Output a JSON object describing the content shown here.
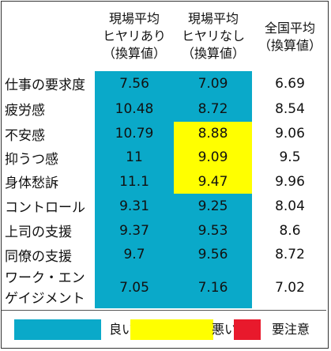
{
  "headers": {
    "col1": [
      "現場平均",
      "ヒヤリあり",
      "（換算値）"
    ],
    "col2": [
      "現場平均",
      "ヒヤリなし",
      "（換算値）"
    ],
    "col3": [
      "全国平均",
      "（換算値）"
    ]
  },
  "rows": [
    {
      "label": "仕事の要求度",
      "v1": "7.56",
      "v2": "7.09",
      "v3": "6.69",
      "c1": "good",
      "c2": "good"
    },
    {
      "label": "疲労感",
      "v1": "10.48",
      "v2": "8.72",
      "v3": "8.54",
      "c1": "good",
      "c2": "good"
    },
    {
      "label": "不安感",
      "v1": "10.79",
      "v2": "8.88",
      "v3": "9.06",
      "c1": "good",
      "c2": "bad"
    },
    {
      "label": "抑うつ感",
      "v1": "11",
      "v2": "9.09",
      "v3": "9.5",
      "c1": "good",
      "c2": "bad"
    },
    {
      "label": "身体愁訴",
      "v1": "11.1",
      "v2": "9.47",
      "v3": "9.96",
      "c1": "good",
      "c2": "bad"
    },
    {
      "label": "コントロール",
      "v1": "9.31",
      "v2": "9.25",
      "v3": "8.04",
      "c1": "good",
      "c2": "good"
    },
    {
      "label": "上司の支援",
      "v1": "9.37",
      "v2": "9.53",
      "v3": "8.6",
      "c1": "good",
      "c2": "good"
    },
    {
      "label": "同僚の支援",
      "v1": "9.7",
      "v2": "9.56",
      "v3": "8.72",
      "c1": "good",
      "c2": "good"
    },
    {
      "label_lines": [
        "ワーク・エン",
        "ゲイジメント"
      ],
      "v1": "7.05",
      "v2": "7.16",
      "v3": "7.02",
      "c1": "good",
      "c2": "good"
    }
  ],
  "legend": [
    {
      "label": "良い",
      "color": "#0aa9c9"
    },
    {
      "label": "悪い",
      "color": "#ffff00"
    },
    {
      "label": "要注意",
      "color": "#e8192c"
    }
  ],
  "colors": {
    "good": "#0aa9c9",
    "bad": "#ffff00",
    "caution": "#e8192c"
  }
}
